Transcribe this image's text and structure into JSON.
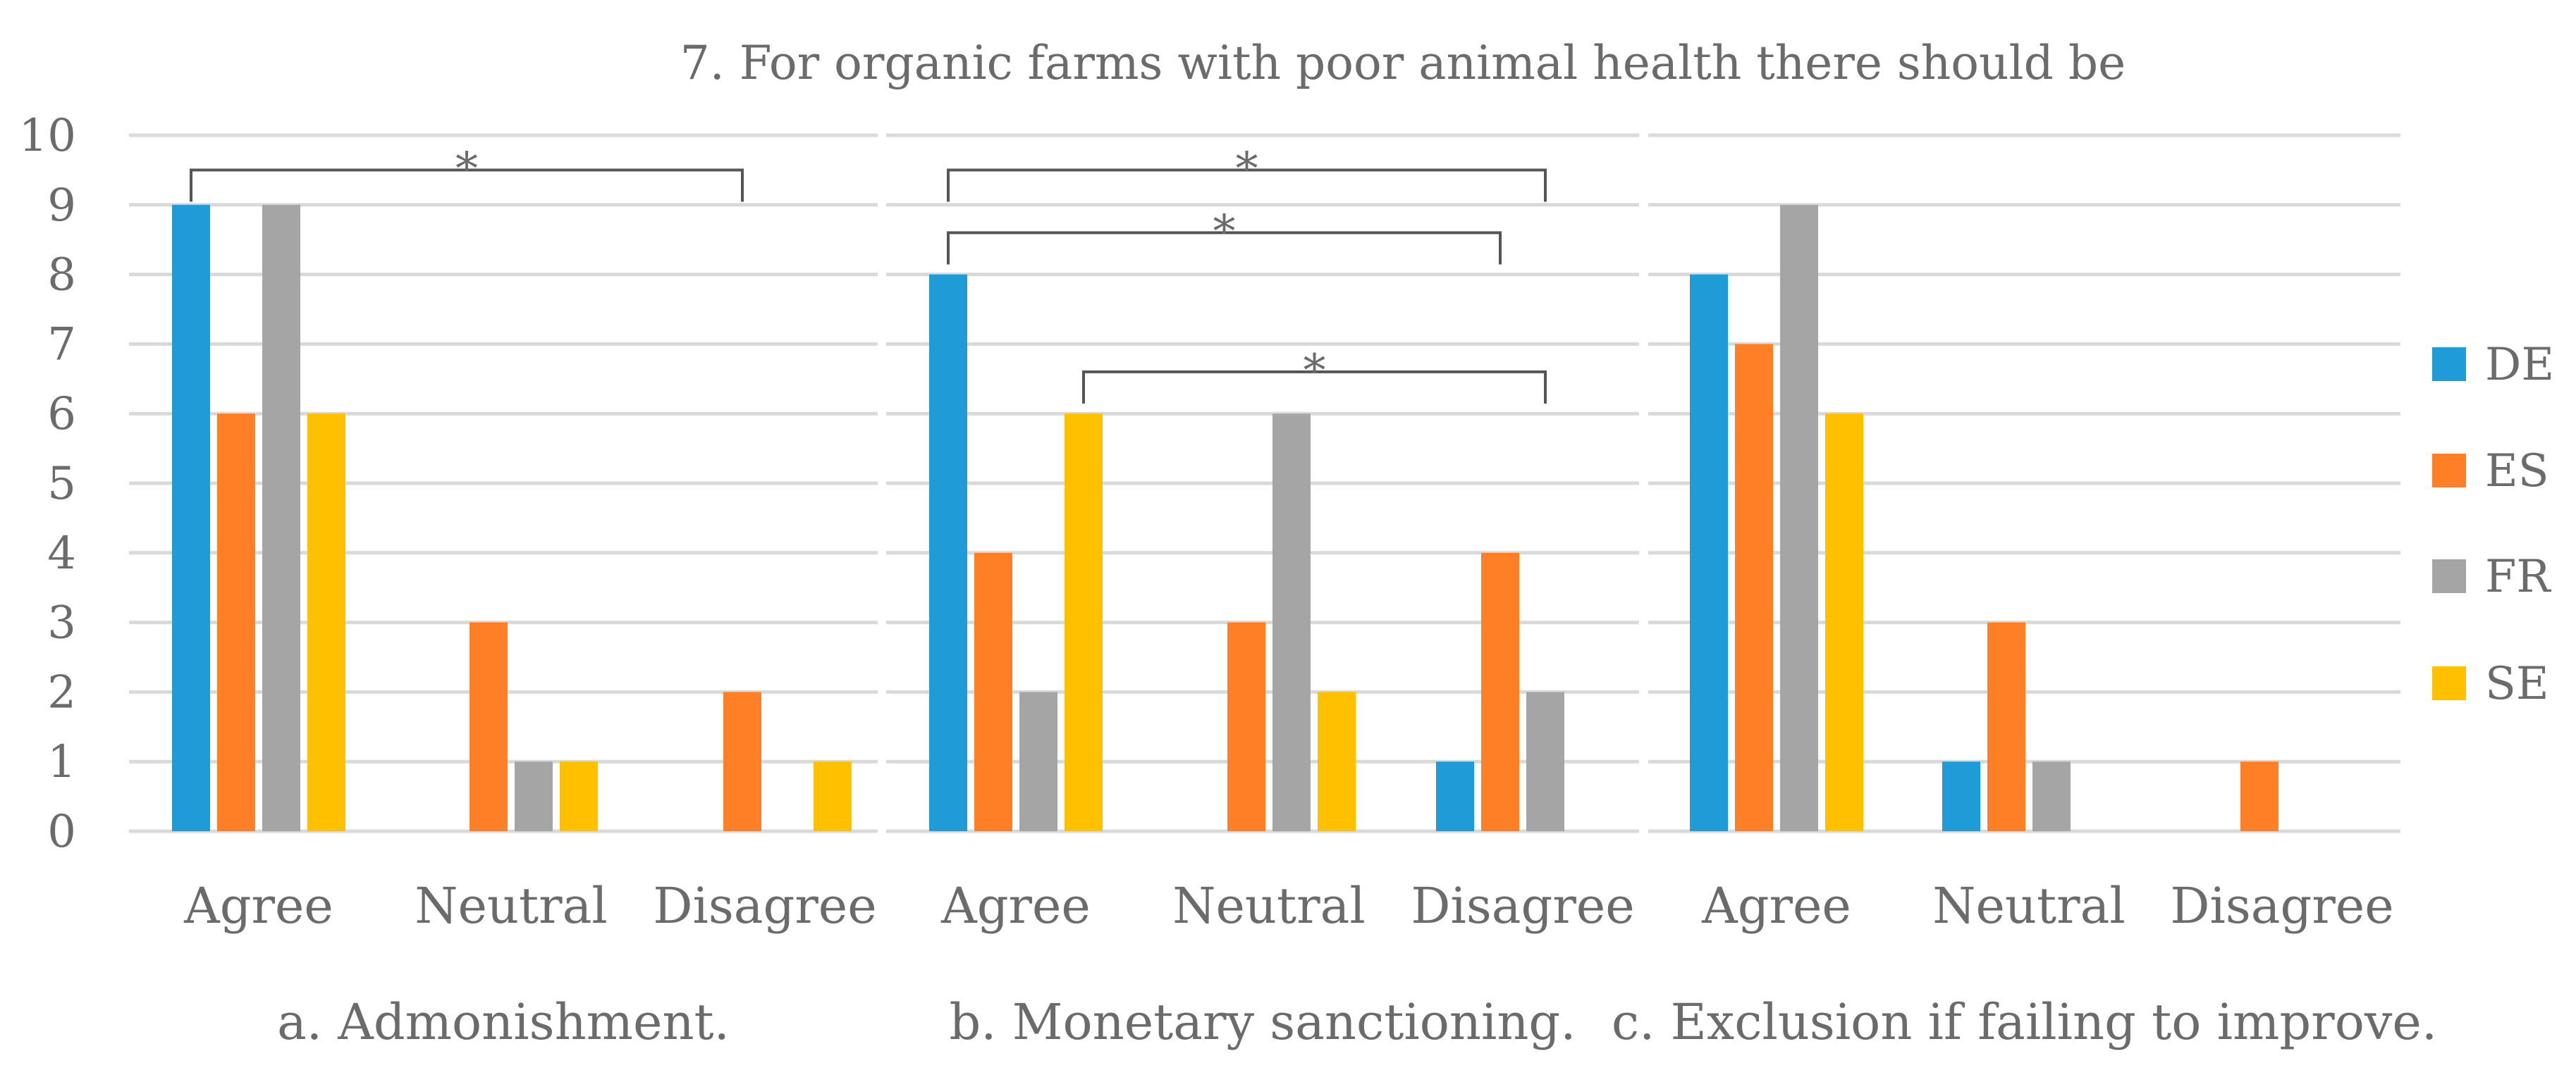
{
  "chart_data": {
    "type": "bar",
    "title": "7. For organic farms with poor animal health there should be",
    "ylim": [
      0,
      10
    ],
    "yticks": [
      0,
      1,
      2,
      3,
      4,
      5,
      6,
      7,
      8,
      9,
      10
    ],
    "grid": true,
    "legend_position": "right",
    "categories": [
      "Agree",
      "Neutral",
      "Disagree"
    ],
    "legend": [
      {
        "name": "DE",
        "color": "#1f9bd7"
      },
      {
        "name": "ES",
        "color": "#ff7f27"
      },
      {
        "name": "FR",
        "color": "#a5a5a5"
      },
      {
        "name": "SE",
        "color": "#ffc000"
      }
    ],
    "panels": [
      {
        "label": "a. Admonishment.",
        "series": [
          {
            "name": "DE",
            "values": [
              9,
              0,
              0
            ]
          },
          {
            "name": "ES",
            "values": [
              6,
              3,
              2
            ]
          },
          {
            "name": "FR",
            "values": [
              9,
              1,
              0
            ]
          },
          {
            "name": "SE",
            "values": [
              6,
              1,
              1
            ]
          }
        ],
        "significance": [
          {
            "from": {
              "category": 0,
              "series": 0
            },
            "to": {
              "category": 2,
              "series": 1
            },
            "level": 9.5,
            "label": "*"
          }
        ]
      },
      {
        "label": "b. Monetary sanctioning.",
        "series": [
          {
            "name": "DE",
            "values": [
              8,
              0,
              1
            ]
          },
          {
            "name": "ES",
            "values": [
              4,
              3,
              4
            ]
          },
          {
            "name": "FR",
            "values": [
              2,
              6,
              2
            ]
          },
          {
            "name": "SE",
            "values": [
              6,
              2,
              0
            ]
          }
        ],
        "significance": [
          {
            "from": {
              "category": 0,
              "series": 0
            },
            "to": {
              "category": 2,
              "series": 2
            },
            "level": 9.5,
            "label": "*"
          },
          {
            "from": {
              "category": 0,
              "series": 0
            },
            "to": {
              "category": 2,
              "series": 1
            },
            "level": 8.6,
            "label": "*"
          },
          {
            "from": {
              "category": 0,
              "series": 3
            },
            "to": {
              "category": 2,
              "series": 2
            },
            "level": 6.6,
            "label": "*"
          }
        ]
      },
      {
        "label": "c. Exclusion if failing to improve.",
        "series": [
          {
            "name": "DE",
            "values": [
              8,
              1,
              0
            ]
          },
          {
            "name": "ES",
            "values": [
              7,
              3,
              1
            ]
          },
          {
            "name": "FR",
            "values": [
              9,
              1,
              0
            ]
          },
          {
            "name": "SE",
            "values": [
              6,
              0,
              0
            ]
          }
        ],
        "significance": []
      }
    ]
  }
}
